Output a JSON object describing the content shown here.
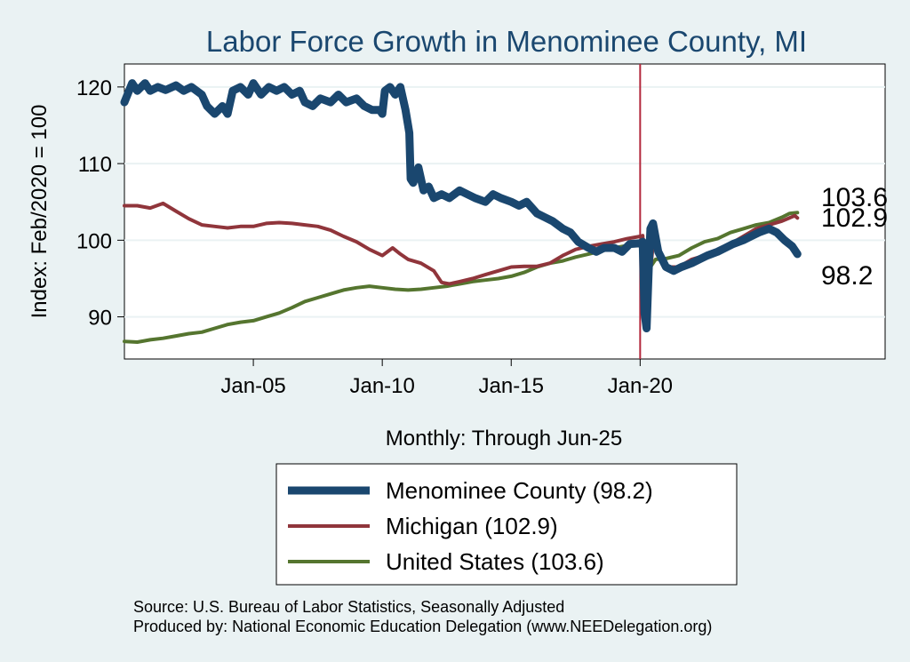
{
  "chart_data": {
    "type": "line",
    "title": "Labor Force Growth in Menominee  County, MI",
    "xlabel": "Monthly: Through Jun-25",
    "ylabel": "Index: Feb/2020 = 100",
    "ylim": [
      84.5,
      123
    ],
    "xlim": [
      2000.0,
      2029.5
    ],
    "y_ticks": [
      90,
      100,
      110,
      120
    ],
    "x_ticks": [
      {
        "value": 2005,
        "label": "Jan-05"
      },
      {
        "value": 2010,
        "label": "Jan-10"
      },
      {
        "value": 2015,
        "label": "Jan-15"
      },
      {
        "value": 2020,
        "label": "Jan-20"
      }
    ],
    "reference_line": {
      "x": 2020.0,
      "color": "#b3283c"
    },
    "grid": true,
    "legend_position": "bottom",
    "series": [
      {
        "name": "Menominee  County (98.2)",
        "color": "#1a476f",
        "width": 9,
        "points": [
          [
            2000.0,
            118.0
          ],
          [
            2000.3,
            120.5
          ],
          [
            2000.5,
            119.5
          ],
          [
            2000.8,
            120.5
          ],
          [
            2001.0,
            119.5
          ],
          [
            2001.3,
            120.0
          ],
          [
            2001.6,
            119.6
          ],
          [
            2002.0,
            120.2
          ],
          [
            2002.3,
            119.5
          ],
          [
            2002.6,
            120.0
          ],
          [
            2003.0,
            119.0
          ],
          [
            2003.2,
            117.5
          ],
          [
            2003.5,
            116.5
          ],
          [
            2003.8,
            117.5
          ],
          [
            2004.0,
            116.5
          ],
          [
            2004.2,
            119.5
          ],
          [
            2004.5,
            120.0
          ],
          [
            2004.8,
            119.0
          ],
          [
            2005.0,
            120.5
          ],
          [
            2005.3,
            119.0
          ],
          [
            2005.6,
            120.0
          ],
          [
            2005.9,
            119.5
          ],
          [
            2006.2,
            120.0
          ],
          [
            2006.5,
            119.0
          ],
          [
            2006.8,
            119.5
          ],
          [
            2007.0,
            118.0
          ],
          [
            2007.3,
            117.5
          ],
          [
            2007.6,
            118.5
          ],
          [
            2008.0,
            118.0
          ],
          [
            2008.3,
            119.0
          ],
          [
            2008.6,
            118.0
          ],
          [
            2009.0,
            118.5
          ],
          [
            2009.3,
            117.5
          ],
          [
            2009.6,
            117.0
          ],
          [
            2009.9,
            117.0
          ],
          [
            2010.0,
            116.5
          ],
          [
            2010.1,
            119.5
          ],
          [
            2010.3,
            120.0
          ],
          [
            2010.5,
            119.0
          ],
          [
            2010.7,
            120.0
          ],
          [
            2010.9,
            117.0
          ],
          [
            2011.0,
            115.0
          ],
          [
            2011.05,
            114.0
          ],
          [
            2011.1,
            108.0
          ],
          [
            2011.2,
            107.5
          ],
          [
            2011.4,
            109.5
          ],
          [
            2011.6,
            106.5
          ],
          [
            2011.8,
            107.0
          ],
          [
            2012.0,
            105.5
          ],
          [
            2012.3,
            106.0
          ],
          [
            2012.6,
            105.5
          ],
          [
            2013.0,
            106.5
          ],
          [
            2013.3,
            106.0
          ],
          [
            2013.6,
            105.5
          ],
          [
            2014.0,
            105.0
          ],
          [
            2014.3,
            106.0
          ],
          [
            2014.6,
            105.5
          ],
          [
            2015.0,
            105.0
          ],
          [
            2015.3,
            104.5
          ],
          [
            2015.6,
            105.0
          ],
          [
            2016.0,
            103.5
          ],
          [
            2016.3,
            103.0
          ],
          [
            2016.6,
            102.5
          ],
          [
            2017.0,
            101.5
          ],
          [
            2017.3,
            101.0
          ],
          [
            2017.6,
            99.8
          ],
          [
            2018.0,
            99.0
          ],
          [
            2018.3,
            98.5
          ],
          [
            2018.6,
            99.0
          ],
          [
            2019.0,
            99.0
          ],
          [
            2019.3,
            98.5
          ],
          [
            2019.6,
            99.5
          ],
          [
            2020.0,
            99.6
          ],
          [
            2020.1,
            99.8
          ],
          [
            2020.17,
            90.5
          ],
          [
            2020.25,
            88.5
          ],
          [
            2020.33,
            96.0
          ],
          [
            2020.4,
            101.5
          ],
          [
            2020.5,
            102.2
          ],
          [
            2020.7,
            98.5
          ],
          [
            2021.0,
            96.5
          ],
          [
            2021.3,
            96.0
          ],
          [
            2021.6,
            96.5
          ],
          [
            2022.0,
            97.0
          ],
          [
            2022.3,
            97.5
          ],
          [
            2022.6,
            98.0
          ],
          [
            2023.0,
            98.5
          ],
          [
            2023.3,
            99.0
          ],
          [
            2023.6,
            99.5
          ],
          [
            2024.0,
            100.0
          ],
          [
            2024.3,
            100.5
          ],
          [
            2024.6,
            101.0
          ],
          [
            2025.0,
            101.5
          ],
          [
            2025.3,
            101.0
          ],
          [
            2025.6,
            100.0
          ],
          [
            2025.9,
            99.2
          ],
          [
            2026.1,
            98.2
          ]
        ]
      },
      {
        "name": "Michigan (102.9)",
        "color": "#90353b",
        "width": 4,
        "points": [
          [
            2000.0,
            104.5
          ],
          [
            2000.5,
            104.5
          ],
          [
            2001.0,
            104.2
          ],
          [
            2001.5,
            104.8
          ],
          [
            2002.0,
            103.8
          ],
          [
            2002.5,
            102.8
          ],
          [
            2003.0,
            102.0
          ],
          [
            2003.5,
            101.8
          ],
          [
            2004.0,
            101.6
          ],
          [
            2004.5,
            101.8
          ],
          [
            2005.0,
            101.8
          ],
          [
            2005.5,
            102.2
          ],
          [
            2006.0,
            102.3
          ],
          [
            2006.5,
            102.2
          ],
          [
            2007.0,
            102.0
          ],
          [
            2007.5,
            101.8
          ],
          [
            2008.0,
            101.3
          ],
          [
            2008.5,
            100.5
          ],
          [
            2009.0,
            99.8
          ],
          [
            2009.5,
            98.8
          ],
          [
            2010.0,
            98.0
          ],
          [
            2010.4,
            99.0
          ],
          [
            2010.7,
            98.2
          ],
          [
            2011.0,
            97.5
          ],
          [
            2011.5,
            97.0
          ],
          [
            2012.0,
            96.0
          ],
          [
            2012.3,
            94.5
          ],
          [
            2012.6,
            94.3
          ],
          [
            2013.0,
            94.6
          ],
          [
            2013.5,
            95.0
          ],
          [
            2014.0,
            95.5
          ],
          [
            2014.5,
            96.0
          ],
          [
            2015.0,
            96.5
          ],
          [
            2015.5,
            96.6
          ],
          [
            2016.0,
            96.6
          ],
          [
            2016.5,
            97.0
          ],
          [
            2017.0,
            98.0
          ],
          [
            2017.5,
            98.8
          ],
          [
            2018.0,
            99.2
          ],
          [
            2018.5,
            99.5
          ],
          [
            2019.0,
            99.8
          ],
          [
            2019.5,
            100.2
          ],
          [
            2020.0,
            100.5
          ],
          [
            2020.1,
            100.6
          ],
          [
            2020.2,
            95.0
          ],
          [
            2020.3,
            92.5
          ],
          [
            2020.4,
            96.0
          ],
          [
            2020.55,
            101.2
          ],
          [
            2020.7,
            99.0
          ],
          [
            2021.0,
            96.5
          ],
          [
            2021.5,
            96.5
          ],
          [
            2022.0,
            97.5
          ],
          [
            2022.5,
            98.0
          ],
          [
            2023.0,
            98.5
          ],
          [
            2023.5,
            99.5
          ],
          [
            2024.0,
            100.5
          ],
          [
            2024.5,
            101.5
          ],
          [
            2025.0,
            102.0
          ],
          [
            2025.5,
            102.5
          ],
          [
            2026.0,
            103.2
          ],
          [
            2026.1,
            102.9
          ]
        ]
      },
      {
        "name": "United States (103.6)",
        "color": "#55752f",
        "width": 4,
        "points": [
          [
            2000.0,
            86.8
          ],
          [
            2000.5,
            86.7
          ],
          [
            2001.0,
            87.0
          ],
          [
            2001.5,
            87.2
          ],
          [
            2002.0,
            87.5
          ],
          [
            2002.5,
            87.8
          ],
          [
            2003.0,
            88.0
          ],
          [
            2003.5,
            88.5
          ],
          [
            2004.0,
            89.0
          ],
          [
            2004.5,
            89.3
          ],
          [
            2005.0,
            89.5
          ],
          [
            2005.5,
            90.0
          ],
          [
            2006.0,
            90.5
          ],
          [
            2006.5,
            91.2
          ],
          [
            2007.0,
            92.0
          ],
          [
            2007.5,
            92.5
          ],
          [
            2008.0,
            93.0
          ],
          [
            2008.5,
            93.5
          ],
          [
            2009.0,
            93.8
          ],
          [
            2009.5,
            94.0
          ],
          [
            2010.0,
            93.8
          ],
          [
            2010.5,
            93.6
          ],
          [
            2011.0,
            93.5
          ],
          [
            2011.5,
            93.6
          ],
          [
            2012.0,
            93.8
          ],
          [
            2012.5,
            94.0
          ],
          [
            2013.0,
            94.3
          ],
          [
            2013.5,
            94.6
          ],
          [
            2014.0,
            94.8
          ],
          [
            2014.5,
            95.0
          ],
          [
            2015.0,
            95.3
          ],
          [
            2015.5,
            95.8
          ],
          [
            2016.0,
            96.5
          ],
          [
            2016.5,
            97.0
          ],
          [
            2017.0,
            97.3
          ],
          [
            2017.5,
            97.8
          ],
          [
            2018.0,
            98.2
          ],
          [
            2018.5,
            98.6
          ],
          [
            2019.0,
            99.0
          ],
          [
            2019.5,
            99.3
          ],
          [
            2020.0,
            99.8
          ],
          [
            2020.1,
            100.1
          ],
          [
            2020.2,
            97.0
          ],
          [
            2020.3,
            94.5
          ],
          [
            2020.4,
            96.5
          ],
          [
            2020.6,
            97.5
          ],
          [
            2021.0,
            97.6
          ],
          [
            2021.5,
            98.0
          ],
          [
            2022.0,
            99.0
          ],
          [
            2022.5,
            99.8
          ],
          [
            2023.0,
            100.2
          ],
          [
            2023.5,
            101.0
          ],
          [
            2024.0,
            101.5
          ],
          [
            2024.5,
            102.0
          ],
          [
            2025.0,
            102.3
          ],
          [
            2025.5,
            103.0
          ],
          [
            2025.8,
            103.5
          ],
          [
            2026.1,
            103.6
          ]
        ]
      }
    ],
    "end_labels": [
      {
        "text": "103.6",
        "value": 103.6
      },
      {
        "text": "102.9",
        "value": 102.9
      },
      {
        "text": "98.2",
        "value": 98.2
      }
    ],
    "notes": {
      "source": "Source: U.S. Bureau of Labor Statistics, Seasonally Adjusted",
      "produced_by": "Produced by: National Economic Education Delegation (www.NEEDelegation.org)"
    }
  }
}
